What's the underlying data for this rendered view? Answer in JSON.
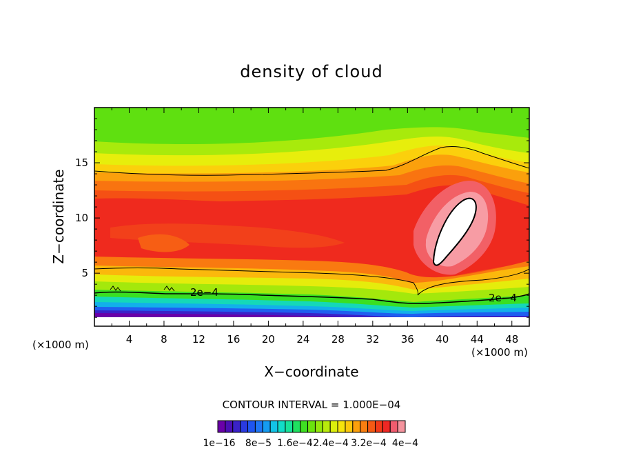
{
  "chart_data": {
    "type": "heatmap",
    "title": "density of cloud",
    "xlabel": "X−coordinate",
    "ylabel": "Z−coordinate",
    "x_unit_left": "(×1000 m)",
    "x_unit_right": "(×1000 m)",
    "xlim": [
      0,
      50
    ],
    "ylim": [
      0.2,
      20
    ],
    "x_ticks": [
      {
        "value": 4,
        "label": "4"
      },
      {
        "value": 8,
        "label": "8"
      },
      {
        "value": 12,
        "label": "12"
      },
      {
        "value": 16,
        "label": "16"
      },
      {
        "value": 20,
        "label": "20"
      },
      {
        "value": 24,
        "label": "24"
      },
      {
        "value": 28,
        "label": "28"
      },
      {
        "value": 32,
        "label": "32"
      },
      {
        "value": 36,
        "label": "36"
      },
      {
        "value": 40,
        "label": "40"
      },
      {
        "value": 44,
        "label": "44"
      },
      {
        "value": 48,
        "label": "48"
      }
    ],
    "y_ticks": [
      {
        "value": 5,
        "label": "5"
      },
      {
        "value": 10,
        "label": "10"
      },
      {
        "value": 15,
        "label": "15"
      }
    ],
    "contour_interval_text": "CONTOUR INTERVAL = 1.000E−04",
    "contour_labels": [
      {
        "text": "2e−4",
        "x": 11.1,
        "z": 3.0
      },
      {
        "text": "2e−4",
        "x": 45.6,
        "z": 2.6
      }
    ],
    "colorbar": {
      "colors": [
        "#6a00a8",
        "#4b0fb4",
        "#3a22c8",
        "#2a3ae0",
        "#1f55f0",
        "#1f76f5",
        "#159cf0",
        "#12c4e6",
        "#12dcc8",
        "#17e29a",
        "#1fe160",
        "#3fdf22",
        "#6ae40e",
        "#94e80c",
        "#b9eb0c",
        "#dcee0c",
        "#f5e40c",
        "#fbc80c",
        "#fba00c",
        "#f97e10",
        "#f55a14",
        "#f23a18",
        "#ef2824",
        "#f05c6e",
        "#f5949e"
      ],
      "labels": [
        "1e−16",
        "8e−5",
        "1.6e−4",
        "2.4e−4",
        "3.2e−4",
        "4e−4"
      ]
    }
  }
}
